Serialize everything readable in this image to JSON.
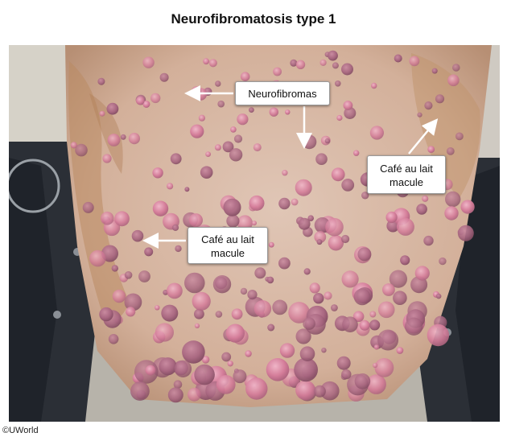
{
  "figure": {
    "title": "Neurofibromatosis type 1",
    "copyright": "©UWorld"
  },
  "labels": {
    "neurofibromas": "Neurofibromas",
    "cafe_right_line1": "Café au lait",
    "cafe_right_line2": "macule",
    "cafe_left_line1": "Café au lait",
    "cafe_left_line2": "macule"
  },
  "colors": {
    "skin_base": "#dcbfae",
    "cafe_au_lait": "#b98a62",
    "nodule_pink": "#d77e9a",
    "nodule_dark": "#b86a86",
    "wheelchair": "#2d3138"
  }
}
